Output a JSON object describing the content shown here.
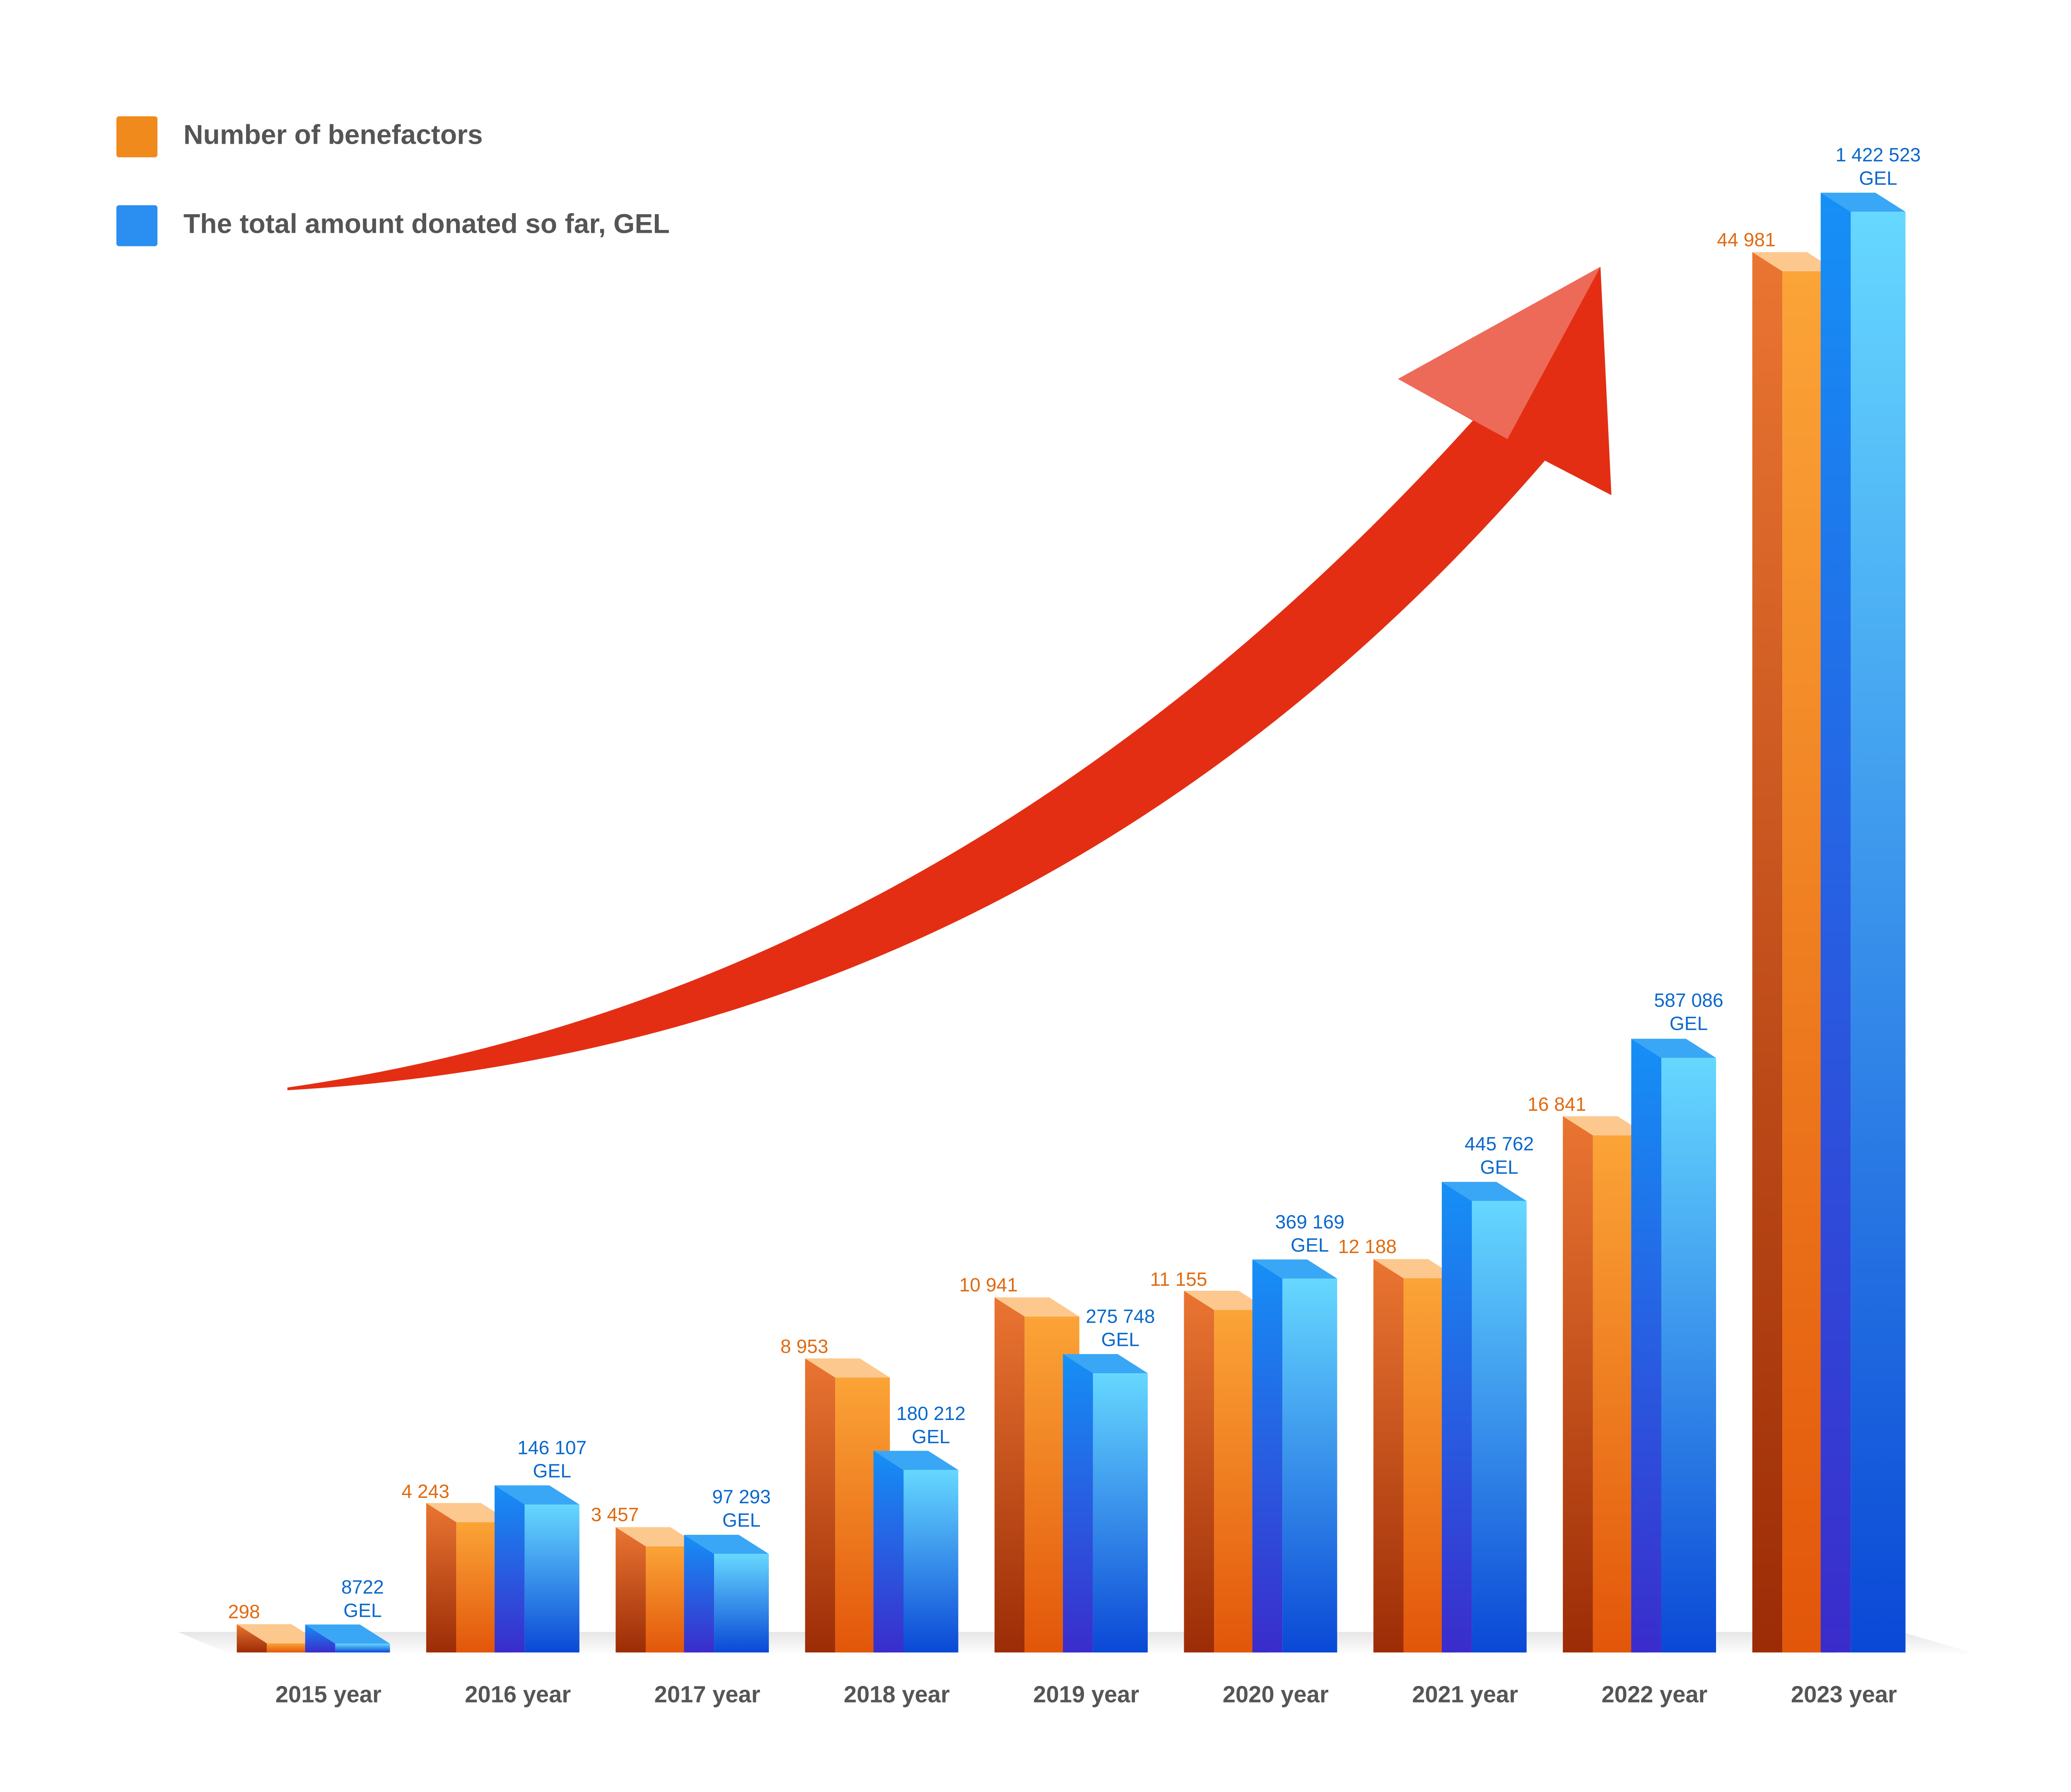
{
  "chart_data": {
    "type": "bar3d",
    "categories": [
      "2015 year",
      "2016 year",
      "2017 year",
      "2018 year",
      "2019 year",
      "2020 year",
      "2021 year",
      "2022 year",
      "2023 year"
    ],
    "series": [
      {
        "name": "Number of benefactors",
        "color": "#f08a1c",
        "values": [
          298,
          4243,
          3457,
          8953,
          10941,
          11155,
          12188,
          16841,
          44981
        ],
        "value_labels": [
          "298",
          "4 243",
          "3 457",
          "8 953",
          "10 941",
          "11 155",
          "12 188",
          "16 841",
          "44 981"
        ]
      },
      {
        "name": "The total amount donated so far, GEL",
        "color": "#2a8ff0",
        "axis": "y2",
        "values": [
          8722,
          146107,
          97293,
          180212,
          275748,
          369169,
          445762,
          587086,
          1422523
        ],
        "value_labels": [
          "8722\nGEL",
          "146 107\nGEL",
          "97 293\nGEL",
          "180 212\nGEL",
          "275 748\nGEL",
          "369 169\nGEL",
          "445 762\nGEL",
          "587 086\nGEL",
          "1 422 523\nGEL"
        ]
      }
    ],
    "ylim": [
      0,
      47000
    ],
    "y2lim": [
      0,
      1425000
    ]
  }
}
